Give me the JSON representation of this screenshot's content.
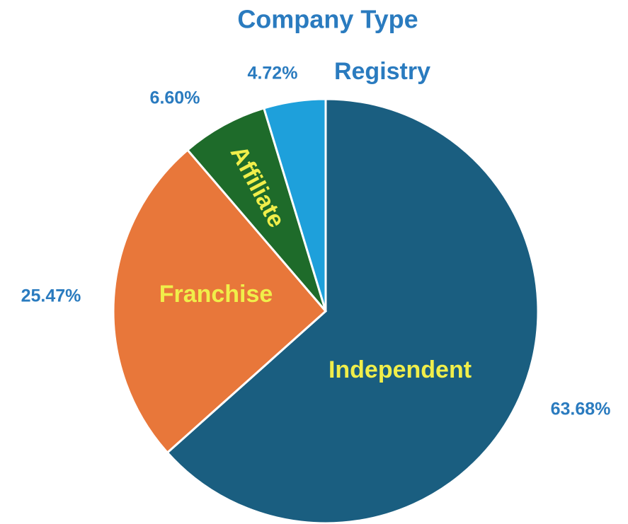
{
  "chart_data": {
    "type": "pie",
    "title": "Company Type",
    "categories": [
      "Independent",
      "Franchise",
      "Affiliate",
      "Registry"
    ],
    "values": [
      63.68,
      25.47,
      6.6,
      4.72
    ],
    "value_labels": [
      "63.68%",
      "25.47%",
      "6.60%",
      "4.72%"
    ],
    "colors": [
      "#1a5e80",
      "#e8773a",
      "#1e6b2a",
      "#1ea0db"
    ]
  }
}
